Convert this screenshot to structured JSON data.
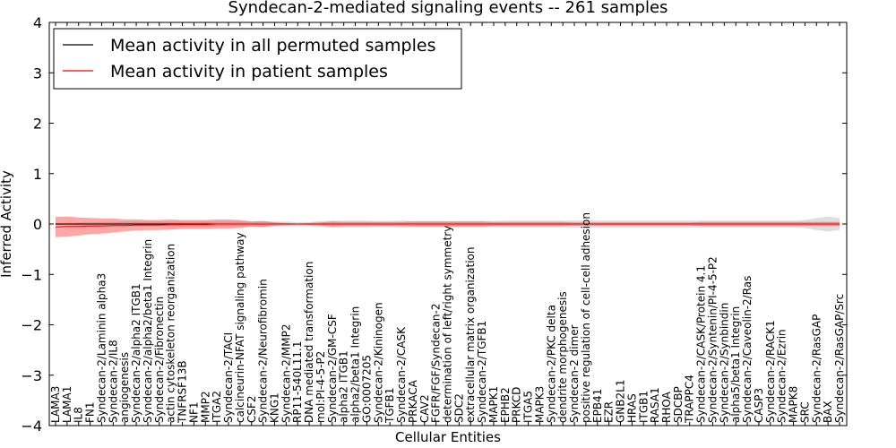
{
  "chart_data": {
    "type": "line",
    "title": "Syndecan-2-mediated signaling events -- 261 samples",
    "xlabel": "Cellular Entities",
    "ylabel": "Inferred Activity",
    "ylim": [
      -4,
      4
    ],
    "yticks": [
      -4,
      -3,
      -2,
      -1,
      0,
      1,
      2,
      3,
      4
    ],
    "ytick_labels": [
      "−4",
      "−3",
      "−2",
      "−1",
      "0",
      "1",
      "2",
      "3",
      "4"
    ],
    "legend_position": "top-left",
    "categories": [
      "LAMA3",
      "LAMA1",
      "IL8",
      "FN1",
      "Syndecan-2/Laminin alpha3",
      "Syndecan-2/IL8",
      "angiogenesis",
      "Syndecan-2/alpha2 ITGB1",
      "Syndecan-2/alpha2/beta1 Integrin",
      "Syndecan-2/Fibronectin",
      "actin cytoskeleton reorganization",
      "TNFRSF13B",
      "NF1",
      "MMP2",
      "ITGA2",
      "Syndecan-2/TACI",
      "calcineurin-NFAT signaling pathway",
      "CSF2",
      "Syndecan-2/Neurofibromin",
      "KNG1",
      "Syndecan-2/MMP2",
      "RP11-540L11.1",
      "DNA mediated transformation",
      "mol:PI-4-5-P2",
      "Syndecan-2/GM-CSF",
      "alpha2 ITGB1",
      "alpha2/beta1 Integrin",
      "GO:0007205",
      "Syndecan-2/Kininogen",
      "TGFB1",
      "Syndecan-2/CASK",
      "PRKACA",
      "CAV2",
      "FGFR/FGF/Syndecan-2",
      "determination of left/right symmetry",
      "SDC2",
      "extracellular matrix organization",
      "Syndecan-2/TGFB1",
      "MAPK1",
      "EPHB2",
      "PRKCD",
      "ITGA5",
      "MAPK3",
      "Syndecan-2/PKC delta",
      "dendrite morphogenesis",
      "Syndecan-2 dimer",
      "positive regulation of cell-cell adhesion",
      "EPB41",
      "EZR",
      "GNB2L1",
      "HRAS",
      "ITGB1",
      "RASA1",
      "RHOA",
      "SDCBP",
      "TRAPPC4",
      "Syndecan-2/CASK/Protein 4.1",
      "Syndecan-2/Syntenin/PI-4-5-P2",
      "Syndecan-2/Synbindin",
      "alpha5/beta1 Integrin",
      "Syndecan-2/Caveolin-2/Ras",
      "CASP3",
      "Syndecan-2/RACK1",
      "Syndecan-2/Ezrin",
      "MAPK8",
      "SRC",
      "Syndecan-2/RasGAP",
      "BAX",
      "Syndecan-2/RasGAP/Src"
    ],
    "series": [
      {
        "name": "Mean activity in all permuted samples",
        "color": "#000000",
        "values": [
          0.0,
          0.0,
          0.0,
          0.0,
          0.0,
          0.0,
          0.0,
          0.0,
          0.0,
          0.0,
          0.0,
          0.0,
          0.0,
          0.0,
          0.0,
          0.0,
          0.0,
          0.0,
          0.0,
          0.0,
          0.0,
          0.0,
          0.0,
          0.0,
          0.0,
          0.0,
          0.0,
          0.0,
          0.0,
          0.0,
          0.0,
          0.0,
          0.0,
          0.0,
          0.0,
          0.0,
          0.0,
          0.0,
          0.0,
          0.0,
          0.0,
          0.0,
          0.0,
          0.0,
          0.0,
          0.0,
          0.0,
          0.0,
          0.0,
          0.0,
          0.0,
          0.0,
          0.0,
          0.0,
          0.0,
          0.0,
          0.0,
          0.0,
          0.0,
          0.0,
          0.0,
          0.0,
          0.0,
          0.0,
          0.0,
          0.0,
          0.0,
          0.0,
          0.0
        ],
        "band": [
          0.02,
          0.02,
          0.03,
          0.03,
          0.04,
          0.04,
          0.05,
          0.05,
          0.05,
          0.05,
          0.05,
          0.05,
          0.05,
          0.05,
          0.05,
          0.05,
          0.05,
          0.05,
          0.05,
          0.05,
          0.05,
          0.04,
          0.04,
          0.06,
          0.07,
          0.07,
          0.07,
          0.07,
          0.06,
          0.06,
          0.07,
          0.06,
          0.06,
          0.06,
          0.06,
          0.06,
          0.06,
          0.06,
          0.06,
          0.07,
          0.07,
          0.07,
          0.07,
          0.07,
          0.07,
          0.07,
          0.07,
          0.07,
          0.07,
          0.07,
          0.07,
          0.07,
          0.07,
          0.07,
          0.07,
          0.07,
          0.07,
          0.07,
          0.07,
          0.07,
          0.07,
          0.07,
          0.07,
          0.07,
          0.07,
          0.08,
          0.12,
          0.15,
          0.12
        ]
      },
      {
        "name": "Mean activity in patient samples",
        "color": "#ff0000",
        "values": [
          -0.06,
          -0.05,
          -0.05,
          -0.04,
          -0.04,
          -0.03,
          -0.03,
          -0.02,
          -0.02,
          -0.02,
          -0.01,
          -0.01,
          -0.01,
          -0.01,
          0.0,
          0.0,
          0.0,
          0.0,
          0.0,
          0.0,
          0.0,
          0.0,
          0.0,
          0.0,
          0.0,
          0.0,
          0.0,
          0.0,
          0.0,
          0.0,
          0.0,
          0.0,
          0.0,
          0.0,
          0.0,
          0.0,
          0.0,
          0.0,
          0.0,
          0.0,
          0.0,
          0.0,
          0.0,
          0.0,
          0.0,
          0.0,
          0.0,
          0.0,
          0.0,
          0.0,
          0.0,
          0.0,
          0.0,
          0.0,
          0.0,
          0.0,
          0.0,
          0.0,
          0.0,
          0.0,
          0.0,
          0.0,
          0.0,
          0.0,
          0.0,
          0.0,
          0.0,
          0.0,
          0.0
        ],
        "band": [
          0.2,
          0.2,
          0.18,
          0.16,
          0.15,
          0.14,
          0.12,
          0.11,
          0.1,
          0.1,
          0.1,
          0.09,
          0.09,
          0.09,
          0.09,
          0.09,
          0.08,
          0.05,
          0.06,
          0.03,
          0.02,
          0.01,
          0.02,
          0.03,
          0.05,
          0.04,
          0.04,
          0.04,
          0.04,
          0.04,
          0.04,
          0.05,
          0.05,
          0.05,
          0.05,
          0.05,
          0.05,
          0.05,
          0.04,
          0.04,
          0.04,
          0.04,
          0.04,
          0.04,
          0.04,
          0.03,
          0.03,
          0.03,
          0.03,
          0.03,
          0.03,
          0.03,
          0.03,
          0.03,
          0.03,
          0.03,
          0.04,
          0.04,
          0.04,
          0.04,
          0.04,
          0.04,
          0.04,
          0.04,
          0.04,
          0.04,
          0.04,
          0.04,
          0.04
        ]
      }
    ]
  }
}
